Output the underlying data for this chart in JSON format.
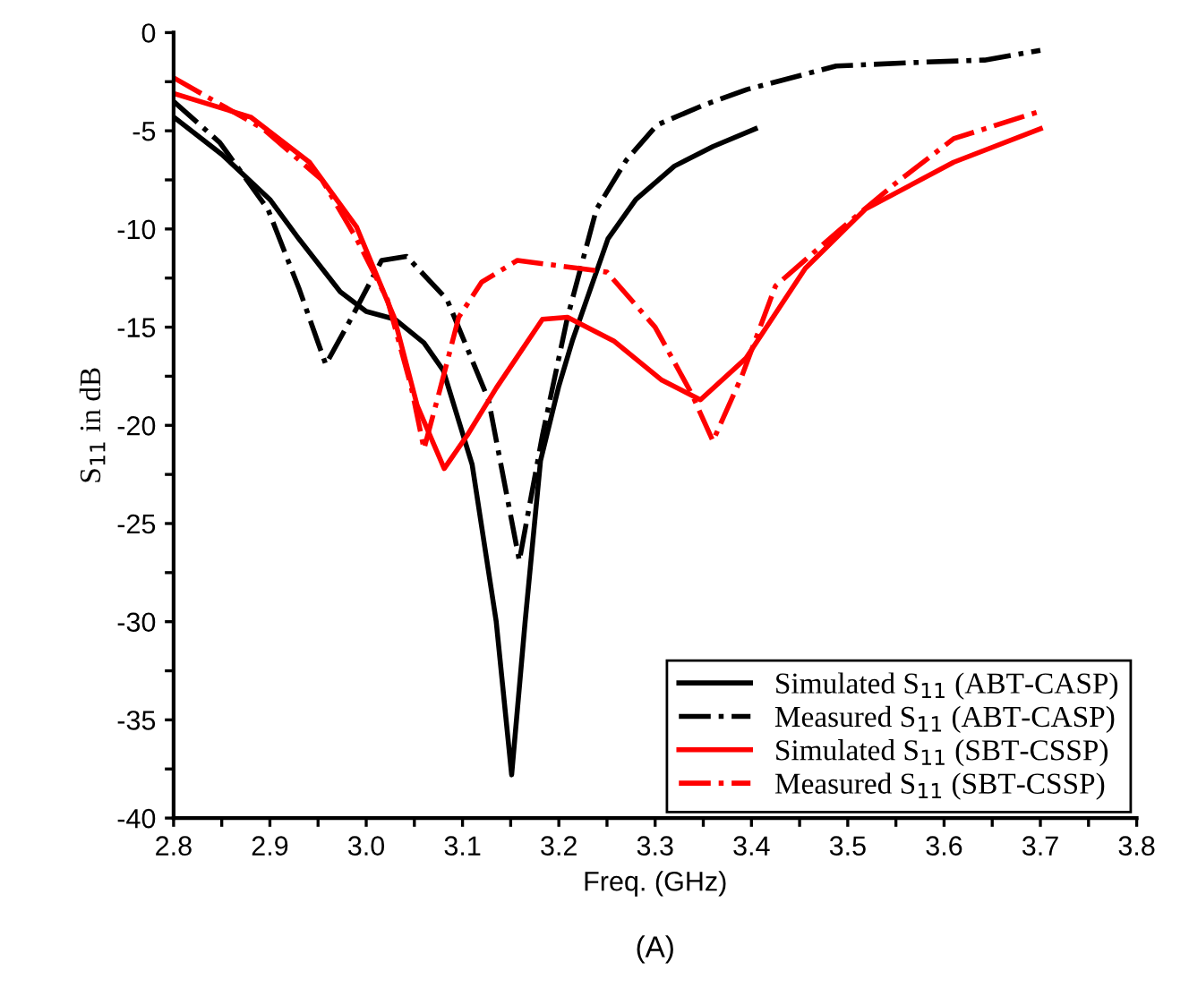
{
  "chart_data": {
    "type": "line",
    "xlabel": "Freq. (GHz)",
    "ylabel": "S$_{11}$ in dB",
    "annotations": [
      "(A)"
    ],
    "xlim": [
      2.8,
      3.8
    ],
    "ylim": [
      -40,
      0
    ],
    "xticks": [
      2.8,
      {
        "value": 2.85,
        "label": null
      },
      2.9,
      {
        "value": 2.95,
        "label": null
      },
      {
        "value": 3.0,
        "label": "3.0"
      },
      {
        "value": 3.05,
        "label": null
      },
      3.1,
      {
        "value": 3.15,
        "label": null
      },
      3.2,
      {
        "value": 3.25,
        "label": null
      },
      3.3,
      {
        "value": 3.35,
        "label": null
      },
      3.4,
      {
        "value": 3.45,
        "label": null
      },
      3.5,
      {
        "value": 3.55,
        "label": null
      },
      3.6,
      {
        "value": 3.65,
        "label": null
      },
      3.7,
      {
        "value": 3.75,
        "label": null
      },
      3.8
    ],
    "yticks": [
      -40,
      {
        "value": -37.5,
        "label": null
      },
      -35,
      {
        "value": -32.5,
        "label": null
      },
      -30,
      {
        "value": -27.5,
        "label": null
      },
      -25,
      {
        "value": -22.5,
        "label": null
      },
      -20,
      {
        "value": -17.5,
        "label": null
      },
      -15,
      {
        "value": -12.5,
        "label": null
      },
      -10,
      {
        "value": -7.5,
        "label": null
      },
      -5,
      {
        "value": -2.5,
        "label": null
      },
      0
    ],
    "grid": false,
    "legend": "bottom right",
    "marker": "none",
    "series": [
      {
        "name": "Simulated S$_{11}$ (ABT-CASP)",
        "color": "#000000",
        "line_style": "solid",
        "x": [
          2.8,
          2.85,
          2.9,
          2.93,
          2.973,
          3.0,
          3.03,
          3.06,
          3.08,
          3.11,
          3.135,
          3.151,
          3.165,
          3.181,
          3.2,
          3.214,
          3.251,
          3.28,
          3.32,
          3.36,
          3.404
        ],
        "values": [
          -4.3,
          -6.2,
          -8.5,
          -10.5,
          -13.2,
          -14.2,
          -14.6,
          -15.8,
          -17.2,
          -22,
          -30,
          -37.8,
          -30,
          -21.8,
          -18,
          -15.7,
          -10.5,
          -8.5,
          -6.8,
          -5.8,
          -4.9
        ]
      },
      {
        "name": "Measured S$_{11}$ (ABT-CASP)",
        "color": "#000000",
        "line_style": "dashdot",
        "x": [
          2.8,
          2.848,
          2.898,
          2.93,
          2.958,
          2.985,
          3.016,
          3.042,
          3.084,
          3.127,
          3.159,
          3.183,
          3.209,
          3.239,
          3.27,
          3.302,
          3.35,
          3.395,
          3.488,
          3.58,
          3.642,
          3.7
        ],
        "values": [
          -3.5,
          -5.6,
          -9,
          -13,
          -16.9,
          -14.5,
          -11.6,
          -11.4,
          -13.6,
          -18.7,
          -26.9,
          -20.5,
          -14.5,
          -9,
          -6.5,
          -4.7,
          -3.7,
          -2.9,
          -1.7,
          -1.5,
          -1.4,
          -0.9
        ]
      },
      {
        "name": "Simulated S$_{11}$ (SBT-CSSP)",
        "color": "#ff0000",
        "line_style": "solid",
        "x": [
          2.8,
          2.88,
          2.941,
          2.99,
          3.029,
          3.053,
          3.081,
          3.105,
          3.135,
          3.183,
          3.209,
          3.257,
          3.307,
          3.347,
          3.394,
          3.456,
          3.518,
          3.61,
          3.7
        ],
        "values": [
          -3.1,
          -4.3,
          -6.6,
          -9.9,
          -14.5,
          -19,
          -22.2,
          -20.5,
          -18.1,
          -14.6,
          -14.5,
          -15.7,
          -17.7,
          -18.7,
          -16.6,
          -12,
          -9,
          -6.6,
          -4.9
        ]
      },
      {
        "name": "Measured S$_{11}$ (SBT-CSSP)",
        "color": "#ff0000",
        "line_style": "dashdot",
        "x": [
          2.8,
          2.893,
          2.954,
          2.99,
          3.022,
          3.047,
          3.06,
          3.077,
          3.096,
          3.12,
          3.157,
          3.22,
          3.25,
          3.3,
          3.338,
          3.36,
          3.39,
          3.425,
          3.488,
          3.549,
          3.61,
          3.7
        ],
        "values": [
          -2.3,
          -4.9,
          -7.5,
          -10.5,
          -13.6,
          -18.1,
          -21.2,
          -18.1,
          -14.5,
          -12.7,
          -11.6,
          -12,
          -12.2,
          -15,
          -18.4,
          -20.8,
          -17.5,
          -12.9,
          -10.2,
          -7.7,
          -5.4,
          -4
        ]
      }
    ]
  }
}
